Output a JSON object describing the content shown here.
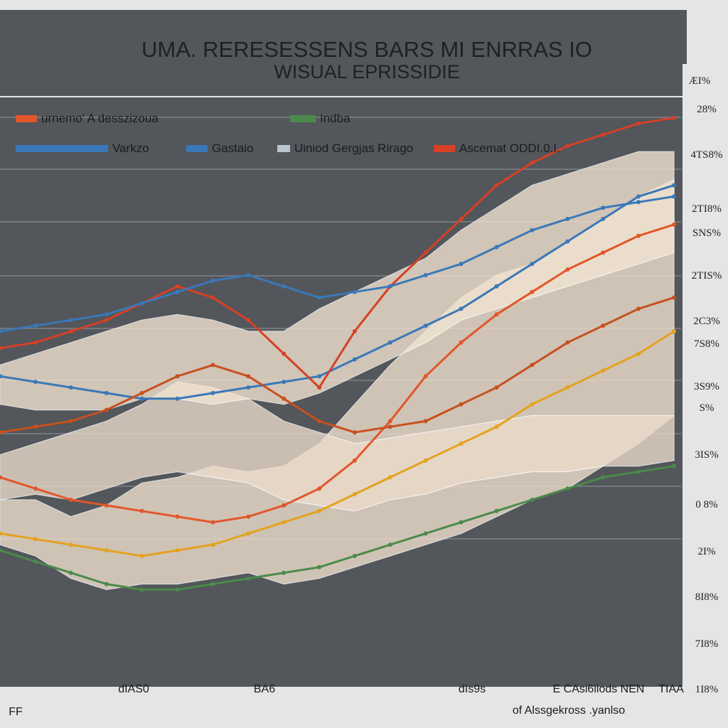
{
  "chart_data": {
    "type": "line",
    "title": "UMA. RERESESSENS BARS  MI ENRRAS IO",
    "subtitle": "WISUAL EPRISSIDIE",
    "top_tick": "ÆI%",
    "colors": {
      "background": "#53565b",
      "header": "#e4e5e6",
      "gridline": "#8b8e93",
      "band_fill": "#f2e2cf",
      "band_alt": "#e9e6e0"
    },
    "legend": [
      {
        "label": "urnemo' A desszizoua",
        "color": "#e2562b"
      },
      {
        "label": "Indba",
        "color": "#4b8a4b"
      },
      {
        "label": "Varkzo",
        "color": "#3a78b8"
      },
      {
        "label": "Gastaio",
        "color": "#3a78b8"
      },
      {
        "label": "Uiniod Gergjas Rirago",
        "color": "#b9c6cf"
      },
      {
        "label": "Ascemat ODDI.0.I.",
        "color": "#d64025"
      }
    ],
    "y_ticks": [
      "28%",
      "4TS8%",
      "2TI8%",
      "SNS%",
      "2TIS%",
      "2C3%",
      "7S8%",
      "3S9%",
      "S%",
      "3IS%",
      "0 8%",
      "2I%",
      "8I8%",
      "7I8%",
      "1I8%"
    ],
    "x_ticks": [
      "dIAS0",
      "BA6",
      "dIs9s",
      "E CAsi6iiods  NEN",
      "TIAA"
    ],
    "x_caption": "of Alssgekross .yanlso",
    "corner_label": "FF",
    "x": [
      0,
      1,
      2,
      3,
      4,
      5,
      6,
      7,
      8,
      9,
      10,
      11,
      12,
      13,
      14,
      15,
      16,
      17,
      18,
      19
    ],
    "ylim": [
      0,
      100
    ],
    "bands": [
      {
        "name": "",
        "upper": [
          30,
          30,
          27,
          29,
          33,
          34,
          36,
          35,
          36,
          40,
          47,
          54,
          60,
          66,
          70,
          72,
          76,
          80,
          84,
          87
        ],
        "lower": [
          22,
          20,
          16,
          14,
          15,
          15,
          16,
          17,
          15,
          16,
          18,
          20,
          22,
          24,
          27,
          30,
          32,
          36,
          40,
          45
        ],
        "color": "#f2e2cf"
      },
      {
        "name": "",
        "upper": [
          38,
          40,
          42,
          44,
          47,
          51,
          50,
          48,
          44,
          42,
          40,
          41,
          42,
          43,
          44,
          45,
          45,
          45,
          45,
          45
        ],
        "lower": [
          30,
          31,
          30,
          32,
          34,
          35,
          34,
          33,
          30,
          29,
          28,
          30,
          31,
          33,
          34,
          35,
          35,
          36,
          36,
          37
        ],
        "color": "#ecdccb"
      },
      {
        "name": "",
        "upper": [
          54,
          56,
          58,
          60,
          62,
          63,
          62,
          60,
          60,
          64,
          67,
          70,
          73,
          78,
          82,
          86,
          88,
          90,
          92,
          92
        ],
        "lower": [
          47,
          46,
          46,
          46,
          48,
          48,
          47,
          48,
          47,
          49,
          52,
          55,
          58,
          62,
          64,
          66,
          68,
          70,
          72,
          74
        ],
        "color": "#f3e5d2"
      }
    ],
    "series": [
      {
        "name": "",
        "color": "#e2562b",
        "values": [
          34,
          32,
          30,
          29,
          28,
          27,
          26,
          27,
          29,
          32,
          37,
          44,
          52,
          58,
          63,
          67,
          71,
          74,
          77,
          79
        ]
      },
      {
        "name": "",
        "color": "#3a78b8",
        "values": [
          52,
          51,
          50,
          49,
          48,
          48,
          49,
          50,
          51,
          52,
          55,
          58,
          61,
          64,
          68,
          72,
          76,
          80,
          84,
          86
        ]
      },
      {
        "name": "",
        "color": "#e4a21e",
        "values": [
          24,
          23,
          22,
          21,
          20,
          21,
          22,
          24,
          26,
          28,
          31,
          34,
          37,
          40,
          43,
          47,
          50,
          53,
          56,
          60
        ]
      },
      {
        "name": "",
        "color": "#4b8a4b",
        "values": [
          21,
          19,
          17,
          15,
          14,
          14,
          15,
          16,
          17,
          18,
          20,
          22,
          24,
          26,
          28,
          30,
          32,
          34,
          35,
          36
        ]
      },
      {
        "name": "",
        "color": "#d64025",
        "values": [
          57,
          58,
          60,
          62,
          65,
          68,
          66,
          62,
          56,
          50,
          60,
          68,
          74,
          80,
          86,
          90,
          93,
          95,
          97,
          98
        ]
      },
      {
        "name": "",
        "color": "#3a78b8",
        "values": [
          60,
          61,
          62,
          63,
          65,
          67,
          69,
          70,
          68,
          66,
          67,
          68,
          70,
          72,
          75,
          78,
          80,
          82,
          83,
          84
        ]
      },
      {
        "name": "",
        "color": "#c7501f",
        "values": [
          42,
          43,
          44,
          46,
          49,
          52,
          54,
          52,
          48,
          44,
          42,
          43,
          44,
          47,
          50,
          54,
          58,
          61,
          64,
          66
        ]
      }
    ]
  }
}
